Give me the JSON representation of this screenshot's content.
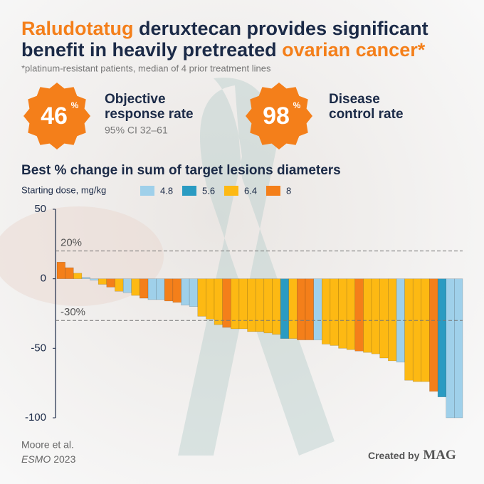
{
  "header": {
    "title": [
      [
        "Raludotatug",
        " deruxtecan provides significant"
      ],
      [
        "benefit in heavily pretreated ",
        "ovarian cancer*"
      ]
    ],
    "subtitle": "*platinum-resistant patients, median of 4 prior treatment lines"
  },
  "stats": [
    {
      "value": "46",
      "unit": "%",
      "label": [
        "Objective",
        "response rate"
      ],
      "note": "95% CI 32–61"
    },
    {
      "value": "98",
      "unit": "%",
      "label": [
        "Disease",
        "control rate"
      ]
    }
  ],
  "chart_data": {
    "type": "bar",
    "title": "Best % change in sum of target lesions diameters",
    "legend_title": "Starting dose, mg/kg",
    "ylim": [
      -100,
      50
    ],
    "yticks": [
      -100,
      -50,
      0,
      50
    ],
    "reference_lines": [
      {
        "value": 20,
        "label": "20%"
      },
      {
        "value": -30,
        "label": "-30%"
      }
    ],
    "series": [
      {
        "name": "4.8",
        "color": "#9fd0ea",
        "values": [
          null,
          null,
          null,
          1,
          -1,
          null,
          null,
          null,
          -10,
          null,
          null,
          -15,
          -15,
          null,
          null,
          -19,
          -20,
          null,
          null,
          null,
          null,
          null,
          null,
          null,
          null,
          null,
          null,
          null,
          null,
          null,
          null,
          -44,
          null,
          null,
          null,
          null,
          null,
          null,
          null,
          null,
          null,
          -60,
          null,
          null,
          null,
          null,
          null,
          -100,
          -100
        ]
      },
      {
        "name": "5.6",
        "color": "#2a9bc2",
        "values": [
          null,
          null,
          null,
          null,
          null,
          null,
          null,
          null,
          null,
          null,
          null,
          null,
          null,
          null,
          null,
          null,
          null,
          null,
          null,
          null,
          null,
          null,
          null,
          null,
          null,
          null,
          null,
          -43,
          null,
          null,
          null,
          null,
          null,
          null,
          null,
          null,
          null,
          null,
          null,
          null,
          null,
          null,
          null,
          null,
          null,
          null,
          -85,
          null,
          null
        ]
      },
      {
        "name": "6.4",
        "color": "#fdb913",
        "values": [
          null,
          null,
          4,
          null,
          null,
          -4,
          null,
          -9,
          null,
          -12,
          null,
          null,
          null,
          null,
          null,
          null,
          null,
          -27,
          -29,
          -33,
          null,
          -36,
          -36,
          -38,
          -38,
          -39,
          -40,
          null,
          -43,
          null,
          null,
          null,
          -47,
          -48,
          -50,
          -51,
          null,
          -53,
          -54,
          -57,
          -59,
          null,
          -73,
          -74,
          -74,
          null,
          null,
          null,
          null
        ]
      },
      {
        "name": "8",
        "color": "#f47f1a",
        "values": [
          12,
          8,
          null,
          null,
          null,
          null,
          -6,
          null,
          null,
          null,
          -14,
          null,
          null,
          -16,
          -17,
          null,
          null,
          null,
          null,
          null,
          -35,
          null,
          null,
          null,
          null,
          null,
          null,
          null,
          null,
          -44,
          -44,
          null,
          null,
          null,
          null,
          null,
          -52,
          null,
          null,
          null,
          null,
          null,
          null,
          null,
          null,
          -81,
          null,
          null,
          null
        ]
      }
    ]
  },
  "footer": {
    "citation": "Moore et al.",
    "venue": "ESMO",
    "year": "2023",
    "credit": "Created by",
    "brand": "MAG"
  }
}
